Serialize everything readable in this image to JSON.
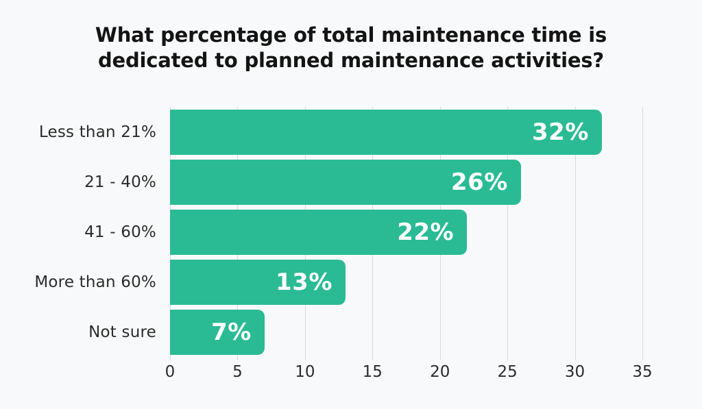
{
  "chart_data": {
    "type": "bar",
    "orientation": "horizontal",
    "title": "What percentage of total maintenance time is dedicated to planned maintenance activities?",
    "categories": [
      "Less than 21%",
      "21 - 40%",
      "41 - 60%",
      "More than 60%",
      "Not sure"
    ],
    "values": [
      32,
      26,
      22,
      13,
      7
    ],
    "value_labels": [
      "32%",
      "26%",
      "22%",
      "13%",
      "7%"
    ],
    "x_ticks": [
      0,
      5,
      10,
      15,
      20,
      25,
      30,
      35
    ],
    "xlim": [
      0,
      35
    ],
    "grid": true,
    "legend": false,
    "colors": {
      "bar": "#2abb94",
      "value_label": "#ffffff",
      "background": "#f8f9fa",
      "gridline": "#d9d9dc",
      "title_text": "#141414",
      "axis_text": "#2b2b2b"
    }
  }
}
